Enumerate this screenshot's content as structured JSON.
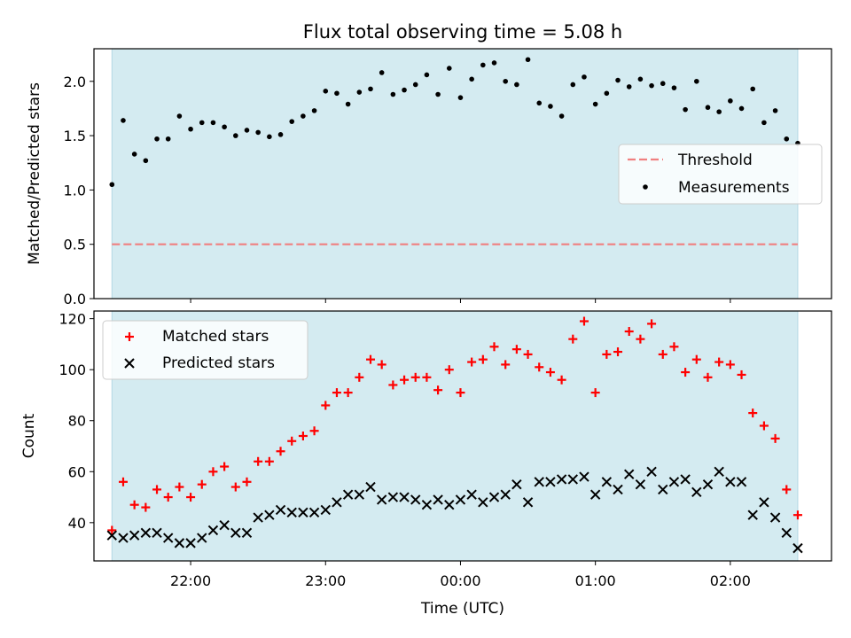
{
  "title": "Flux total observing time = 5.08 h",
  "colors": {
    "band": "#d4ebf1",
    "band_edge": "#b4d8e3",
    "threshold": "#f08080",
    "matched": "#ff0000",
    "predicted": "#000000",
    "measure": "#000000"
  },
  "chart_data": [
    {
      "type": "scatter",
      "ylabel": "Matched/Predicted stars",
      "ylim": [
        0,
        2.3
      ],
      "yticks": [
        "0.0",
        "0.5",
        "1.0",
        "1.5",
        "2.0"
      ],
      "ytick_values": [
        0,
        0.5,
        1.0,
        1.5,
        2.0
      ],
      "shaded_interval": [
        "21:25",
        "02:30"
      ],
      "legend": {
        "placement": "center-right",
        "threshold_label": "Threshold",
        "measurements_label": "Measurements"
      },
      "threshold": 0.5,
      "series": [
        {
          "name": "Measurements",
          "x": [
            "21:25",
            "21:30",
            "21:35",
            "21:40",
            "21:45",
            "21:50",
            "21:55",
            "22:00",
            "22:05",
            "22:10",
            "22:15",
            "22:20",
            "22:25",
            "22:30",
            "22:35",
            "22:40",
            "22:45",
            "22:50",
            "22:55",
            "23:00",
            "23:05",
            "23:10",
            "23:15",
            "23:20",
            "23:25",
            "23:30",
            "23:35",
            "23:40",
            "23:45",
            "23:50",
            "23:55",
            "00:00",
            "00:05",
            "00:10",
            "00:15",
            "00:20",
            "00:25",
            "00:30",
            "00:35",
            "00:40",
            "00:45",
            "00:50",
            "00:55",
            "01:00",
            "01:05",
            "01:10",
            "01:15",
            "01:20",
            "01:25",
            "01:30",
            "01:35",
            "01:40",
            "01:45",
            "01:50",
            "01:55",
            "02:00",
            "02:05",
            "02:10",
            "02:15",
            "02:20",
            "02:25",
            "02:30"
          ],
          "y": [
            1.05,
            1.64,
            1.33,
            1.27,
            1.47,
            1.47,
            1.68,
            1.56,
            1.62,
            1.62,
            1.58,
            1.5,
            1.55,
            1.53,
            1.49,
            1.51,
            1.63,
            1.68,
            1.73,
            1.91,
            1.89,
            1.79,
            1.9,
            1.93,
            2.08,
            1.88,
            1.92,
            1.97,
            2.06,
            1.88,
            2.12,
            1.85,
            2.02,
            2.15,
            2.17,
            2.0,
            1.97,
            2.2,
            1.8,
            1.77,
            1.68,
            1.97,
            2.04,
            1.79,
            1.89,
            2.01,
            1.95,
            2.02,
            1.96,
            1.98,
            1.94,
            1.74,
            2.0,
            1.76,
            1.72,
            1.82,
            1.75,
            1.93,
            1.62,
            1.73,
            1.47,
            1.43
          ]
        }
      ]
    },
    {
      "type": "scatter",
      "xlabel": "Time (UTC)",
      "ylabel": "Count",
      "ylim": [
        25,
        123
      ],
      "yticks": [
        "40",
        "60",
        "80",
        "100",
        "120"
      ],
      "ytick_values": [
        40,
        60,
        80,
        100,
        120
      ],
      "xlim": [
        "21:17",
        "02:45"
      ],
      "xticks": [
        "22:00",
        "23:00",
        "00:00",
        "01:00",
        "02:00"
      ],
      "legend": {
        "placement": "top-left"
      },
      "series": [
        {
          "name": "Matched stars",
          "x": [
            "21:25",
            "21:30",
            "21:35",
            "21:40",
            "21:45",
            "21:50",
            "21:55",
            "22:00",
            "22:05",
            "22:10",
            "22:15",
            "22:20",
            "22:25",
            "22:30",
            "22:35",
            "22:40",
            "22:45",
            "22:50",
            "22:55",
            "23:00",
            "23:05",
            "23:10",
            "23:15",
            "23:20",
            "23:25",
            "23:30",
            "23:35",
            "23:40",
            "23:45",
            "23:50",
            "23:55",
            "00:00",
            "00:05",
            "00:10",
            "00:15",
            "00:20",
            "00:25",
            "00:30",
            "00:35",
            "00:40",
            "00:45",
            "00:50",
            "00:55",
            "01:00",
            "01:05",
            "01:10",
            "01:15",
            "01:20",
            "01:25",
            "01:30",
            "01:35",
            "01:40",
            "01:45",
            "01:50",
            "01:55",
            "02:00",
            "02:05",
            "02:10",
            "02:15",
            "02:20",
            "02:25",
            "02:30"
          ],
          "y": [
            37,
            56,
            47,
            46,
            53,
            50,
            54,
            50,
            55,
            60,
            62,
            54,
            56,
            64,
            64,
            68,
            72,
            74,
            76,
            86,
            91,
            91,
            97,
            104,
            102,
            94,
            96,
            97,
            97,
            92,
            100,
            91,
            103,
            104,
            109,
            102,
            108,
            106,
            101,
            99,
            96,
            112,
            119,
            91,
            106,
            107,
            115,
            112,
            118,
            106,
            109,
            99,
            104,
            97,
            103,
            102,
            98,
            83,
            78,
            73,
            53,
            43
          ]
        },
        {
          "name": "Predicted stars",
          "x": [
            "21:25",
            "21:30",
            "21:35",
            "21:40",
            "21:45",
            "21:50",
            "21:55",
            "22:00",
            "22:05",
            "22:10",
            "22:15",
            "22:20",
            "22:25",
            "22:30",
            "22:35",
            "22:40",
            "22:45",
            "22:50",
            "22:55",
            "23:00",
            "23:05",
            "23:10",
            "23:15",
            "23:20",
            "23:25",
            "23:30",
            "23:35",
            "23:40",
            "23:45",
            "23:50",
            "23:55",
            "00:00",
            "00:05",
            "00:10",
            "00:15",
            "00:20",
            "00:25",
            "00:30",
            "00:35",
            "00:40",
            "00:45",
            "00:50",
            "00:55",
            "01:00",
            "01:05",
            "01:10",
            "01:15",
            "01:20",
            "01:25",
            "01:30",
            "01:35",
            "01:40",
            "01:45",
            "01:50",
            "01:55",
            "02:00",
            "02:05",
            "02:10",
            "02:15",
            "02:20",
            "02:25",
            "02:30"
          ],
          "y": [
            35,
            34,
            35,
            36,
            36,
            34,
            32,
            32,
            34,
            37,
            39,
            36,
            36,
            42,
            43,
            45,
            44,
            44,
            44,
            45,
            48,
            51,
            51,
            54,
            49,
            50,
            50,
            49,
            47,
            49,
            47,
            49,
            51,
            48,
            50,
            51,
            55,
            48,
            56,
            56,
            57,
            57,
            58,
            51,
            56,
            53,
            59,
            55,
            60,
            53,
            56,
            57,
            52,
            55,
            60,
            56,
            56,
            43,
            48,
            42,
            36,
            30
          ]
        }
      ]
    }
  ]
}
